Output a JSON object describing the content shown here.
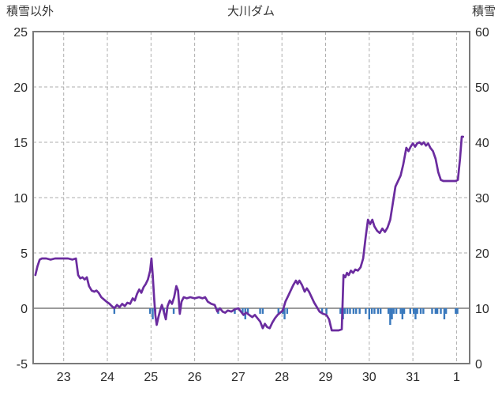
{
  "chart_data": {
    "type": "line",
    "title": "大川ダム",
    "left_axis": {
      "label": "積雪以外",
      "min": -5,
      "max": 25,
      "ticks": [
        25,
        20,
        15,
        10,
        5,
        0,
        -5
      ]
    },
    "right_axis": {
      "label": "積雪",
      "min": 0,
      "max": 60,
      "ticks": [
        60,
        50,
        40,
        30,
        20,
        10,
        0
      ]
    },
    "x_axis": {
      "min": 22.3,
      "max": 32.3,
      "gridlines": [
        23,
        24,
        25,
        26,
        27,
        28,
        29,
        30,
        31,
        32
      ],
      "tick_labels": [
        "23",
        "24",
        "25",
        "26",
        "27",
        "28",
        "29",
        "30",
        "31",
        "1"
      ]
    },
    "grid": {
      "color": "#aeaeae",
      "dashed": true
    },
    "frame_color": "#7a7a7a",
    "zero_line_value": 0,
    "series": [
      {
        "name": "line-series",
        "type": "line",
        "color": "#6B2C9F",
        "axis": "left",
        "points": [
          [
            22.35,
            3.0
          ],
          [
            22.4,
            3.8
          ],
          [
            22.45,
            4.4
          ],
          [
            22.5,
            4.5
          ],
          [
            22.6,
            4.5
          ],
          [
            22.7,
            4.4
          ],
          [
            22.8,
            4.5
          ],
          [
            22.9,
            4.5
          ],
          [
            23.0,
            4.5
          ],
          [
            23.1,
            4.5
          ],
          [
            23.2,
            4.4
          ],
          [
            23.28,
            4.5
          ],
          [
            23.33,
            3.0
          ],
          [
            23.38,
            2.7
          ],
          [
            23.43,
            2.8
          ],
          [
            23.48,
            2.6
          ],
          [
            23.53,
            2.8
          ],
          [
            23.58,
            2.0
          ],
          [
            23.64,
            1.6
          ],
          [
            23.7,
            1.5
          ],
          [
            23.75,
            1.6
          ],
          [
            23.8,
            1.4
          ],
          [
            23.86,
            1.0
          ],
          [
            23.92,
            0.8
          ],
          [
            23.98,
            0.6
          ],
          [
            24.05,
            0.4
          ],
          [
            24.1,
            0.2
          ],
          [
            24.16,
            0.0
          ],
          [
            24.22,
            0.3
          ],
          [
            24.28,
            0.1
          ],
          [
            24.34,
            0.4
          ],
          [
            24.4,
            0.2
          ],
          [
            24.46,
            0.5
          ],
          [
            24.52,
            0.4
          ],
          [
            24.58,
            0.9
          ],
          [
            24.63,
            0.7
          ],
          [
            24.68,
            1.3
          ],
          [
            24.73,
            1.7
          ],
          [
            24.78,
            1.4
          ],
          [
            24.83,
            1.9
          ],
          [
            24.88,
            2.2
          ],
          [
            24.93,
            2.6
          ],
          [
            24.98,
            3.4
          ],
          [
            25.01,
            4.5
          ],
          [
            25.04,
            3.0
          ],
          [
            25.07,
            1.0
          ],
          [
            25.1,
            -0.6
          ],
          [
            25.13,
            -1.5
          ],
          [
            25.17,
            -0.8
          ],
          [
            25.21,
            -0.2
          ],
          [
            25.25,
            0.3
          ],
          [
            25.3,
            -0.4
          ],
          [
            25.34,
            -1.0
          ],
          [
            25.38,
            0.2
          ],
          [
            25.43,
            0.7
          ],
          [
            25.48,
            0.4
          ],
          [
            25.53,
            1.0
          ],
          [
            25.58,
            2.0
          ],
          [
            25.62,
            1.6
          ],
          [
            25.66,
            -0.5
          ],
          [
            25.7,
            0.6
          ],
          [
            25.75,
            1.0
          ],
          [
            25.82,
            0.9
          ],
          [
            25.9,
            1.0
          ],
          [
            26.0,
            0.9
          ],
          [
            26.1,
            1.0
          ],
          [
            26.18,
            0.9
          ],
          [
            26.24,
            1.0
          ],
          [
            26.3,
            0.6
          ],
          [
            26.38,
            0.4
          ],
          [
            26.46,
            0.3
          ],
          [
            26.52,
            -0.3
          ],
          [
            26.58,
            0.0
          ],
          [
            26.64,
            -0.3
          ],
          [
            26.7,
            -0.4
          ],
          [
            26.76,
            -0.2
          ],
          [
            26.84,
            -0.3
          ],
          [
            26.92,
            -0.1
          ],
          [
            27.0,
            0.0
          ],
          [
            27.06,
            -0.3
          ],
          [
            27.12,
            -0.6
          ],
          [
            27.18,
            -0.4
          ],
          [
            27.25,
            -0.6
          ],
          [
            27.32,
            -0.8
          ],
          [
            27.38,
            -0.6
          ],
          [
            27.44,
            -0.9
          ],
          [
            27.5,
            -1.2
          ],
          [
            27.56,
            -1.8
          ],
          [
            27.61,
            -1.4
          ],
          [
            27.66,
            -1.7
          ],
          [
            27.72,
            -1.8
          ],
          [
            27.78,
            -1.3
          ],
          [
            27.84,
            -0.9
          ],
          [
            27.9,
            -0.6
          ],
          [
            27.96,
            -0.4
          ],
          [
            28.02,
            -0.2
          ],
          [
            28.08,
            0.6
          ],
          [
            28.14,
            1.1
          ],
          [
            28.2,
            1.6
          ],
          [
            28.26,
            2.1
          ],
          [
            28.32,
            2.5
          ],
          [
            28.36,
            2.2
          ],
          [
            28.4,
            2.5
          ],
          [
            28.46,
            2.1
          ],
          [
            28.52,
            1.5
          ],
          [
            28.57,
            1.8
          ],
          [
            28.62,
            1.5
          ],
          [
            28.68,
            1.0
          ],
          [
            28.74,
            0.5
          ],
          [
            28.8,
            0.1
          ],
          [
            28.86,
            -0.3
          ],
          [
            28.94,
            -0.5
          ],
          [
            29.02,
            -0.6
          ],
          [
            29.08,
            -1.0
          ],
          [
            29.14,
            -2.0
          ],
          [
            29.22,
            -2.0
          ],
          [
            29.3,
            -2.0
          ],
          [
            29.37,
            -1.9
          ],
          [
            29.41,
            3.0
          ],
          [
            29.45,
            2.8
          ],
          [
            29.49,
            3.2
          ],
          [
            29.53,
            3.0
          ],
          [
            29.58,
            3.4
          ],
          [
            29.63,
            3.2
          ],
          [
            29.68,
            3.5
          ],
          [
            29.74,
            3.4
          ],
          [
            29.8,
            3.7
          ],
          [
            29.86,
            4.5
          ],
          [
            29.92,
            6.5
          ],
          [
            29.97,
            8.0
          ],
          [
            30.02,
            7.6
          ],
          [
            30.07,
            8.0
          ],
          [
            30.12,
            7.4
          ],
          [
            30.18,
            7.0
          ],
          [
            30.24,
            6.8
          ],
          [
            30.3,
            7.2
          ],
          [
            30.36,
            6.9
          ],
          [
            30.42,
            7.3
          ],
          [
            30.48,
            8.0
          ],
          [
            30.54,
            9.5
          ],
          [
            30.6,
            11.0
          ],
          [
            30.66,
            11.5
          ],
          [
            30.72,
            12.0
          ],
          [
            30.78,
            13.0
          ],
          [
            30.85,
            14.5
          ],
          [
            30.9,
            14.2
          ],
          [
            30.95,
            14.6
          ],
          [
            31.0,
            14.9
          ],
          [
            31.05,
            14.6
          ],
          [
            31.1,
            14.9
          ],
          [
            31.15,
            15.0
          ],
          [
            31.2,
            14.8
          ],
          [
            31.25,
            15.0
          ],
          [
            31.3,
            14.7
          ],
          [
            31.35,
            14.9
          ],
          [
            31.4,
            14.5
          ],
          [
            31.46,
            14.2
          ],
          [
            31.52,
            13.5
          ],
          [
            31.58,
            12.3
          ],
          [
            31.64,
            11.6
          ],
          [
            31.7,
            11.5
          ],
          [
            31.8,
            11.5
          ],
          [
            31.9,
            11.5
          ],
          [
            31.98,
            11.5
          ],
          [
            32.03,
            11.6
          ],
          [
            32.08,
            13.5
          ],
          [
            32.12,
            15.5
          ],
          [
            32.15,
            15.5
          ]
        ]
      },
      {
        "name": "bar-series",
        "type": "bar",
        "color": "#3A79BD",
        "axis": "right",
        "points": [
          [
            24.16,
            1
          ],
          [
            24.98,
            1
          ],
          [
            25.04,
            2
          ],
          [
            25.1,
            1
          ],
          [
            25.3,
            1
          ],
          [
            25.52,
            1
          ],
          [
            26.54,
            1
          ],
          [
            26.92,
            1
          ],
          [
            27.1,
            1
          ],
          [
            27.16,
            2
          ],
          [
            27.22,
            1
          ],
          [
            27.5,
            1
          ],
          [
            27.56,
            1
          ],
          [
            27.92,
            1
          ],
          [
            28.02,
            1
          ],
          [
            28.06,
            2
          ],
          [
            28.12,
            1
          ],
          [
            28.92,
            1
          ],
          [
            29.02,
            1
          ],
          [
            29.34,
            1
          ],
          [
            29.4,
            2
          ],
          [
            29.44,
            1
          ],
          [
            29.5,
            1
          ],
          [
            29.56,
            1
          ],
          [
            29.64,
            1
          ],
          [
            29.7,
            1
          ],
          [
            29.78,
            1
          ],
          [
            29.92,
            1
          ],
          [
            30.0,
            2
          ],
          [
            30.06,
            1
          ],
          [
            30.12,
            1
          ],
          [
            30.2,
            1
          ],
          [
            30.26,
            1
          ],
          [
            30.44,
            1
          ],
          [
            30.48,
            3
          ],
          [
            30.52,
            2
          ],
          [
            30.56,
            1
          ],
          [
            30.62,
            1
          ],
          [
            30.72,
            1
          ],
          [
            30.76,
            2
          ],
          [
            30.8,
            1
          ],
          [
            30.94,
            1
          ],
          [
            31.02,
            1
          ],
          [
            31.06,
            2
          ],
          [
            31.1,
            1
          ],
          [
            31.18,
            1
          ],
          [
            31.24,
            1
          ],
          [
            31.44,
            1
          ],
          [
            31.52,
            1
          ],
          [
            31.56,
            1
          ],
          [
            31.64,
            1
          ],
          [
            31.72,
            2
          ],
          [
            31.76,
            1
          ],
          [
            31.98,
            1
          ],
          [
            32.02,
            1
          ]
        ]
      }
    ]
  }
}
